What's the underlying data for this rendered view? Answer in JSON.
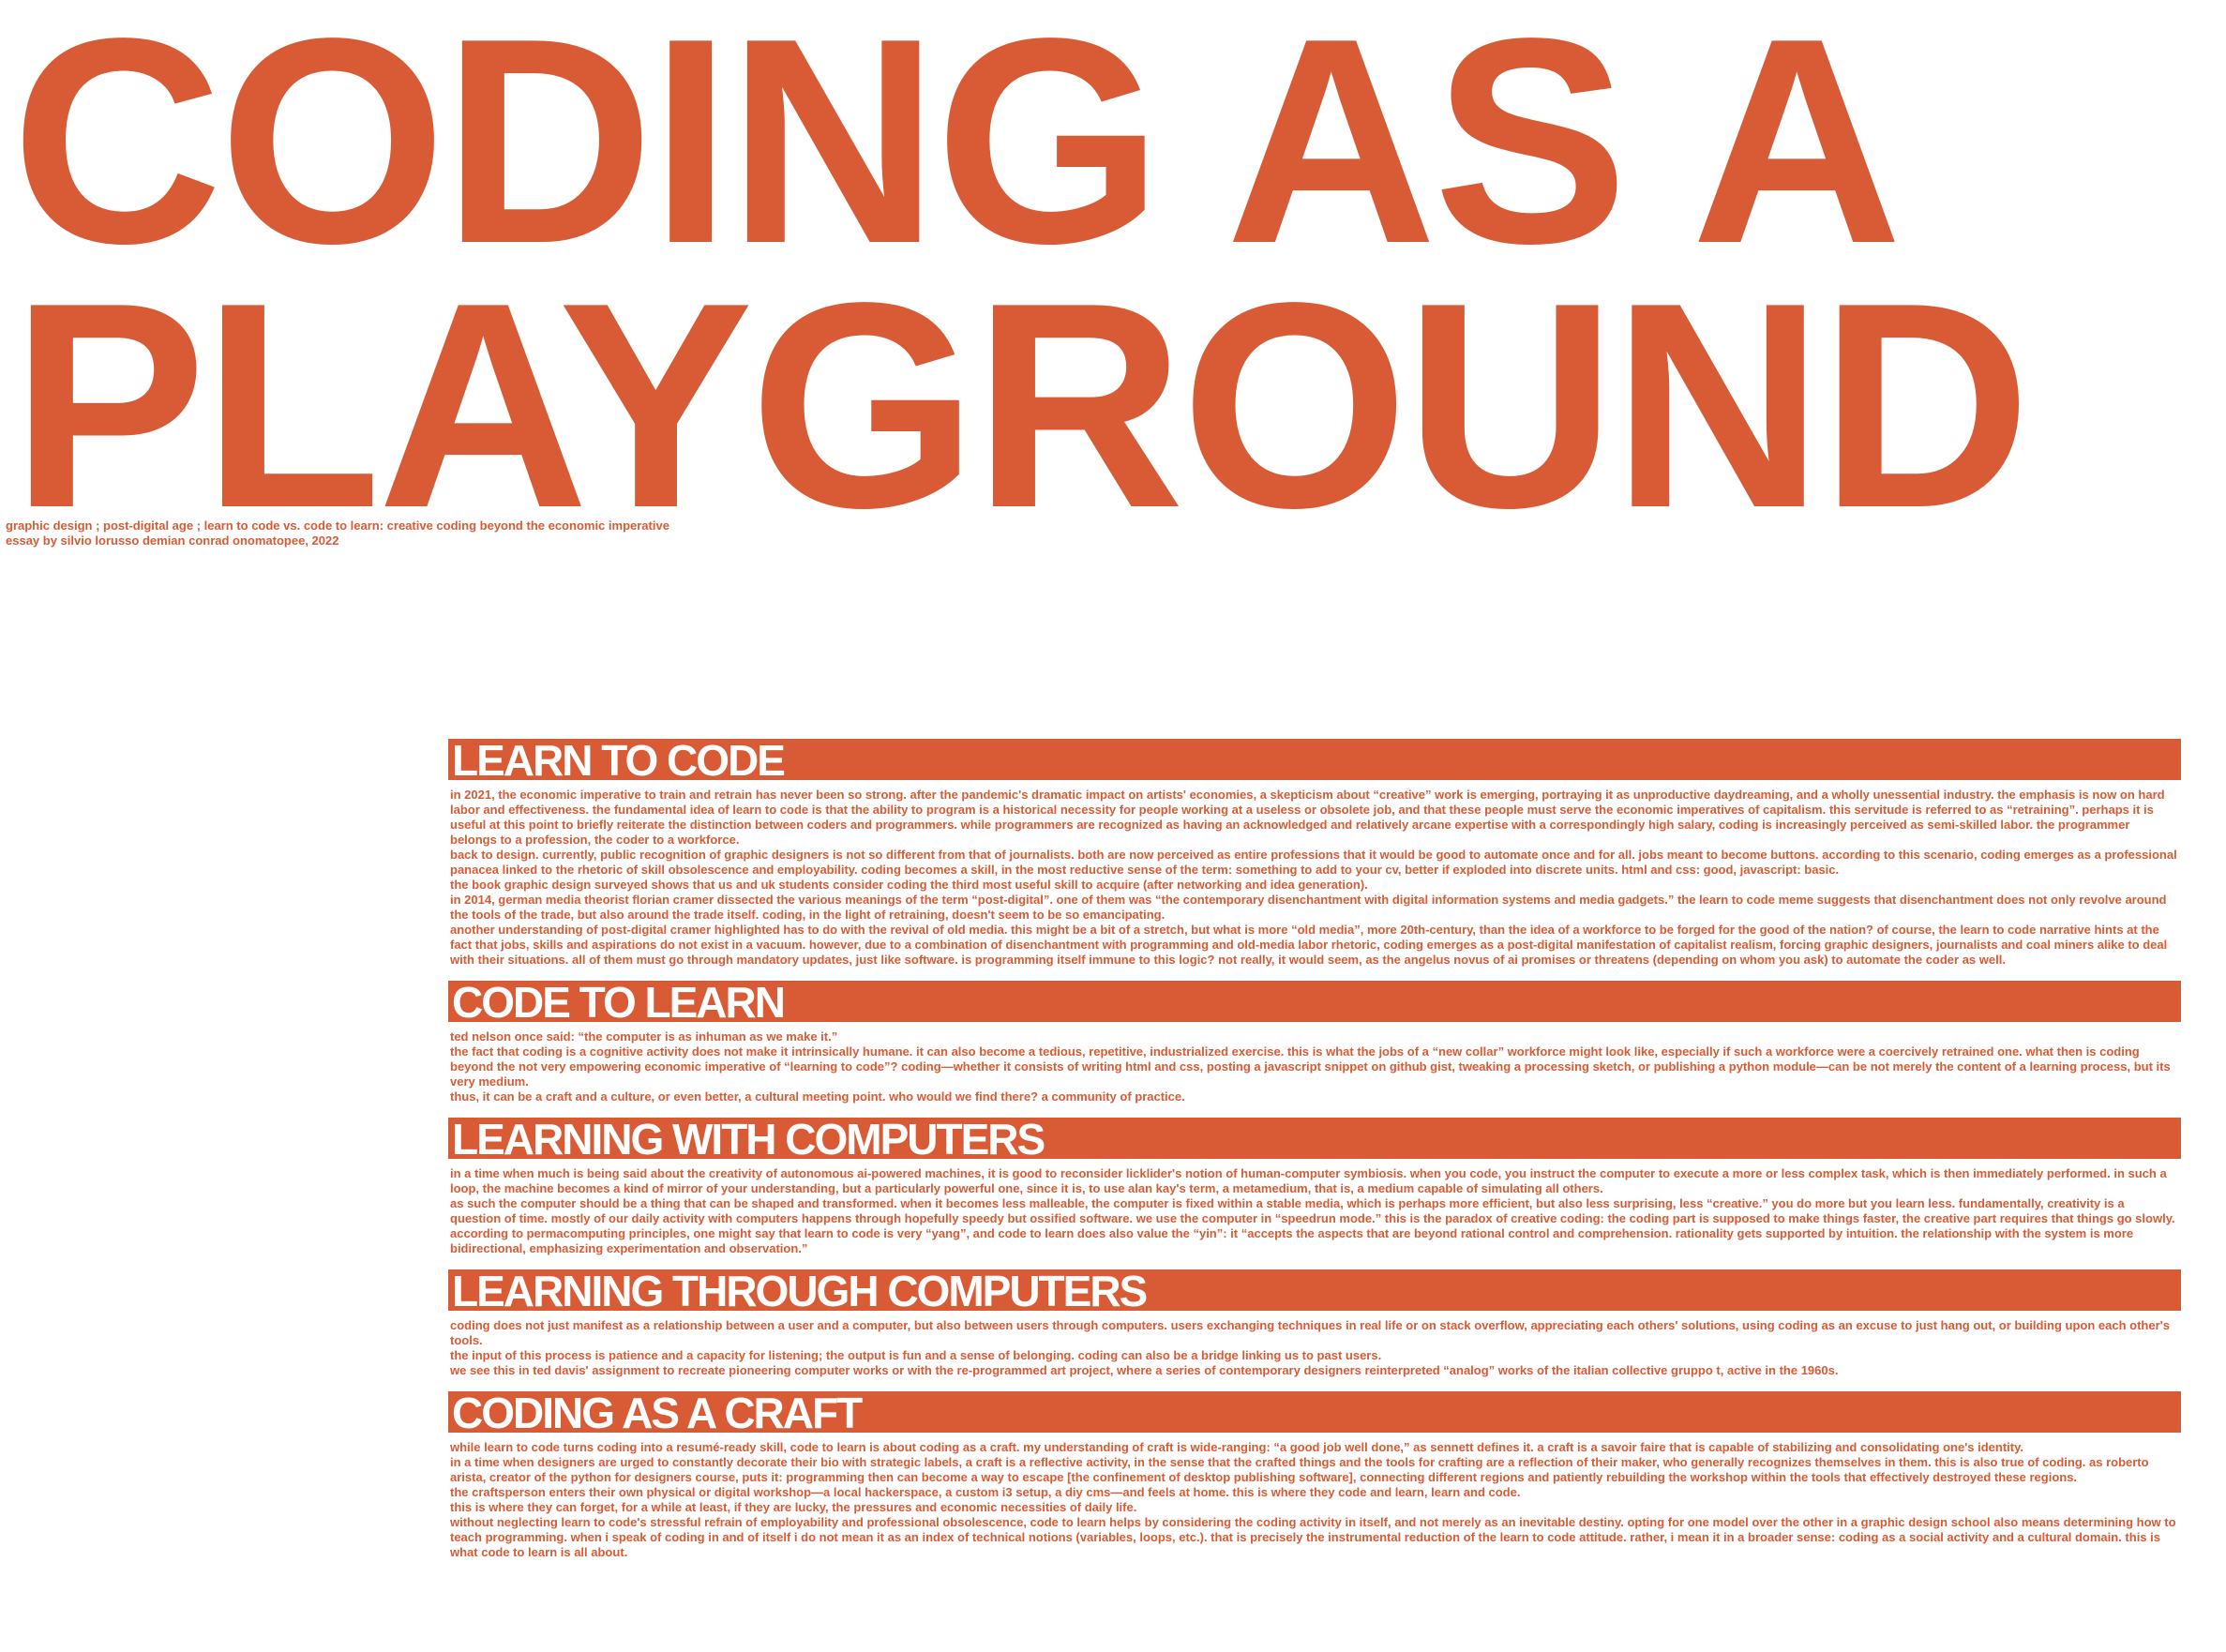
{
  "title": {
    "line1": "CODING AS A",
    "line2": "PLAYGROUND"
  },
  "meta": {
    "line1": "graphic design ; post-digital age ; learn to code vs. code to learn: creative coding beyond the economic imperative",
    "line2": "essay by silvio lorusso demian conrad onomatopee, 2022"
  },
  "colors": {
    "accent": "#D85B35",
    "background": "#ffffff"
  },
  "sections": [
    {
      "heading": "LEARN TO CODE",
      "paragraphs": [
        "in 2021, the economic imperative to train and retrain has never been so strong. after the pandemic's dramatic impact on artists' economies, a skepticism about “creative” work is emerging, portraying it as unproductive daydreaming, and a wholly unessential industry. the emphasis is now on hard labor and effectiveness. the fundamental idea of learn to code is that the ability to program is a historical necessity for people working at a useless or obsolete job, and that these people must serve the economic imperatives of capitalism. this servitude is referred to as “retraining”. perhaps it is useful at this point to briefly reiterate the distinction between coders and programmers. while programmers are recognized as having an acknowledged and relatively arcane expertise with a correspondingly high salary, coding is increasingly perceived as semi-skilled labor. the programmer belongs to a profession, the coder to a workforce.",
        "back to design. currently, public recognition of graphic designers is not so different from that of journalists. both are now perceived as entire professions that it would be good to automate once and for all. jobs meant to become buttons. according to this scenario, coding emerges as a professional panacea linked to the rhetoric of skill obsolescence and employability. coding becomes a skill, in the most reductive sense of the term: something to add to your cv, better if exploded into discrete units. html and css: good, javascript: basic.",
        "the book graphic design surveyed shows that us and uk students consider coding the third most useful skill to acquire (after networking and idea generation).",
        "in 2014, german media theorist florian cramer dissected the various meanings of the term “post-digital”. one of them was “the contemporary disenchantment with digital information systems and media gadgets.” the learn to code meme suggests that disenchantment does not only revolve around the tools of the trade, but also around the trade itself. coding, in the light of retraining, doesn't seem to be so emancipating.",
        "another understanding of post-digital cramer highlighted has to do with the revival of old media. this might be a bit of a stretch, but what is more “old media”, more 20th-century, than the idea of a workforce to be forged for the good of the nation? of course, the learn to code narrative hints at the fact that jobs, skills and aspirations do not exist in a vacuum. however, due to a combination of disenchantment with programming and old-media labor rhetoric, coding emerges as a post-digital manifestation of capitalist realism, forcing graphic designers, journalists and coal miners alike to deal with their situations. all of them must go through mandatory updates, just like software. is programming itself immune to this logic? not really, it would seem, as the angelus novus of ai promises or threatens (depending on whom you ask) to automate the coder as well."
      ]
    },
    {
      "heading": "CODE TO LEARN",
      "paragraphs": [
        "ted nelson once said: “the computer is as inhuman as we make it.”",
        "the fact that coding is a cognitive activity does not make it intrinsically humane. it can also become a tedious, repetitive, industrialized exercise. this is what the jobs of a “new collar” workforce might look like, especially if such a workforce were a coercively retrained one. what then is coding beyond the not very empowering economic imperative of “learning to code”? coding—whether it consists of writing html and css, posting a javascript snippet on github gist, tweaking a processing sketch, or publishing a python module—can be not merely the content of a learning process, but its very medium.",
        "thus, it can be a craft and a culture, or even better, a cultural meeting point. who would we find there? a community of practice."
      ]
    },
    {
      "heading": "LEARNING WITH COMPUTERS",
      "paragraphs": [
        "in a time when much is being said about the creativity of autonomous ai-powered machines, it is good to reconsider licklider's notion of human-computer symbiosis. when you code, you instruct the computer to execute a more or less complex task, which is then immediately performed. in such a loop, the machine becomes a kind of mirror of your understanding, but a particularly powerful one, since it is, to use alan kay's term, a metamedium, that is, a medium capable of simulating all others.",
        "as such the computer should be a thing that can be shaped and transformed. when it becomes less malleable, the computer is fixed within a stable media, which is perhaps more efficient, but also less surprising, less “creative.” you do more but you learn less. fundamentally, creativity is a question of time. mostly of our daily activity with computers happens through hopefully speedy but ossified software. we use the computer in “speedrun mode.” this is the paradox of creative coding: the coding part is supposed to make things faster, the creative part requires that things go slowly. according to permacomputing principles, one might say that learn to code is very “yang”, and code to learn does also value the “yin”: it “accepts the aspects that are beyond rational control and comprehension. rationality gets supported by intuition. the relationship with the system is more bidirectional, emphasizing experimentation and observation.”"
      ]
    },
    {
      "heading": "LEARNING THROUGH COMPUTERS",
      "paragraphs": [
        "coding does not just manifest as a relationship between a user and a computer, but also between users through computers. users exchanging techniques in real life or on stack overflow, appreciating each others' solutions, using coding as an excuse to just hang out, or building upon each other's tools.",
        "the input of this process is patience and a capacity for listening; the output is fun and a sense of belonging. coding can also be a bridge linking us to past users.",
        "we see this in ted davis' assignment to recreate pioneering computer works or with the re-programmed art project, where a series of contemporary designers reinterpreted “analog” works of the italian collective gruppo t, active in the 1960s."
      ]
    },
    {
      "heading": "CODING AS A CRAFT",
      "paragraphs": [
        "while learn to code turns coding into a resumé-ready skill, code to learn is about coding as a craft. my understanding of craft is wide-ranging: “a good job well done,” as sennett defines it. a craft is a savoir faire that is capable of stabilizing and consolidating one's identity.",
        "in a time when designers are urged to constantly decorate their bio with strategic labels, a craft is a reflective activity, in the sense that the crafted things and the tools for crafting are a reflection of their maker, who generally recognizes themselves in them. this is also true of coding. as roberto arista, creator of the python for designers course, puts it: programming then can become a way to escape [the confinement of desktop publishing software], connecting different regions and patiently rebuilding the workshop within the tools that effectively destroyed these regions.",
        "the craftsperson enters their own physical or digital workshop—a local hackerspace, a custom i3 setup, a diy cms—and feels at home. this is where they code and learn, learn and code.",
        "this is where they can forget, for a while at least, if they are lucky, the pressures and economic necessities of daily life.",
        "without neglecting learn to code's stressful refrain of employability and professional obsolescence, code to learn helps by considering the coding activity in itself, and not merely as an inevitable destiny. opting for one model over the other in a graphic design school also means determining how to teach programming. when i speak of coding in and of itself i do not mean it as an index of technical notions (variables, loops, etc.). that is precisely the instrumental reduction of the learn to code attitude. rather, i mean it in a broader sense: coding as a social activity and a cultural domain. this is what code to learn is all about."
      ]
    }
  ]
}
